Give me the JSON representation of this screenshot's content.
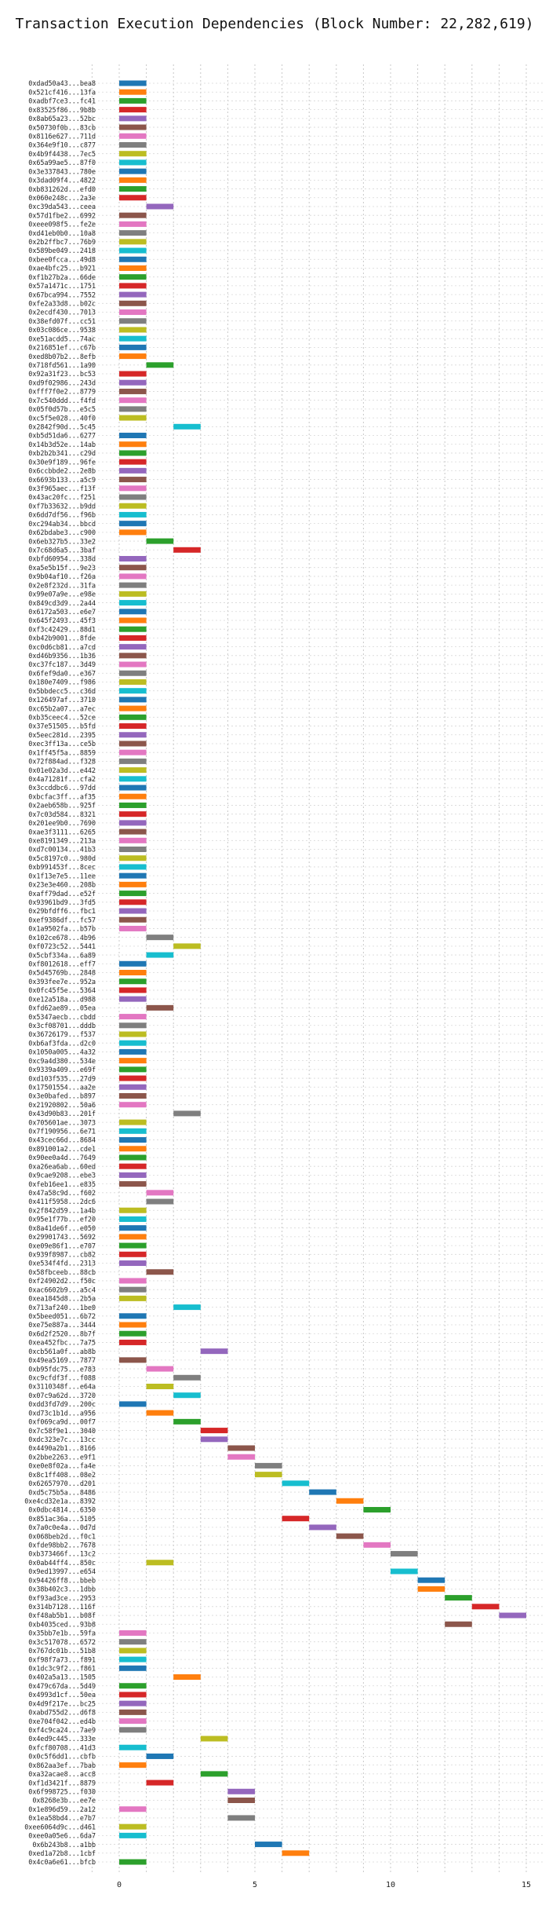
{
  "chart_data": {
    "type": "bar",
    "orientation": "horizontal",
    "title": "Transaction Execution Dependencies (Block Number: 22,282,619)",
    "xlabel": "",
    "ylabel": "",
    "xlim": [
      -1.25,
      16.25
    ],
    "xticks": [
      0,
      5,
      10,
      15
    ],
    "grid": true,
    "legend": "none",
    "palette": [
      "#1f77b4",
      "#ff7f0e",
      "#2ca02c",
      "#d62728",
      "#9467bd",
      "#8c564b",
      "#e377c2",
      "#7f7f7f",
      "#bcbd22",
      "#17becf"
    ],
    "transactions": [
      {
        "label": "0xdad50a43...bea8",
        "start": 0,
        "end": 1
      },
      {
        "label": "0x521cf416...13fa",
        "start": 0,
        "end": 1
      },
      {
        "label": "0xadbf7ce3...fc41",
        "start": 0,
        "end": 1
      },
      {
        "label": "0x83525f86...9b8b",
        "start": 0,
        "end": 1
      },
      {
        "label": "0x8ab65a23...52bc",
        "start": 0,
        "end": 1
      },
      {
        "label": "0x50730f0b...83cb",
        "start": 0,
        "end": 1
      },
      {
        "label": "0x8116e627...711d",
        "start": 0,
        "end": 1
      },
      {
        "label": "0x364e9f10...c877",
        "start": 0,
        "end": 1
      },
      {
        "label": "0x4b9f4438...7ec5",
        "start": 0,
        "end": 1
      },
      {
        "label": "0x65a99ae5...87f0",
        "start": 0,
        "end": 1
      },
      {
        "label": "0x3e337843...780e",
        "start": 0,
        "end": 1
      },
      {
        "label": "0x3dad09f4...4822",
        "start": 0,
        "end": 1
      },
      {
        "label": "0xb831262d...efd0",
        "start": 0,
        "end": 1
      },
      {
        "label": "0x060e248c...2a3e",
        "start": 0,
        "end": 1
      },
      {
        "label": "0xc39da543...ceea",
        "start": 1,
        "end": 2
      },
      {
        "label": "0x57d1fbe2...6992",
        "start": 0,
        "end": 1
      },
      {
        "label": "0xeee098f5...fe2e",
        "start": 0,
        "end": 1
      },
      {
        "label": "0xd41eb0b0...10a8",
        "start": 0,
        "end": 1
      },
      {
        "label": "0x2b2ffbc7...76b9",
        "start": 0,
        "end": 1
      },
      {
        "label": "0x589be049...2418",
        "start": 0,
        "end": 1
      },
      {
        "label": "0xbee0fcca...49d8",
        "start": 0,
        "end": 1
      },
      {
        "label": "0xae4bfc25...b921",
        "start": 0,
        "end": 1
      },
      {
        "label": "0xf1b27b2a...66de",
        "start": 0,
        "end": 1
      },
      {
        "label": "0x57a1471c...1751",
        "start": 0,
        "end": 1
      },
      {
        "label": "0x67bca994...7552",
        "start": 0,
        "end": 1
      },
      {
        "label": "0xfe2a33d8...b02c",
        "start": 0,
        "end": 1
      },
      {
        "label": "0x2ecdf430...7013",
        "start": 0,
        "end": 1
      },
      {
        "label": "0x38efd07f...cc51",
        "start": 0,
        "end": 1
      },
      {
        "label": "0x03c086ce...9538",
        "start": 0,
        "end": 1
      },
      {
        "label": "0xe51acdd5...74ac",
        "start": 0,
        "end": 1
      },
      {
        "label": "0x216851ef...c67b",
        "start": 0,
        "end": 1
      },
      {
        "label": "0xed8b07b2...8efb",
        "start": 0,
        "end": 1
      },
      {
        "label": "0x718fd561...1a90",
        "start": 1,
        "end": 2
      },
      {
        "label": "0x92a31f23...bc53",
        "start": 0,
        "end": 1
      },
      {
        "label": "0xd9f02986...243d",
        "start": 0,
        "end": 1
      },
      {
        "label": "0xfff7f0e2...8779",
        "start": 0,
        "end": 1
      },
      {
        "label": "0x7c540ddd...f4fd",
        "start": 0,
        "end": 1
      },
      {
        "label": "0x05f0d57b...e5c5",
        "start": 0,
        "end": 1
      },
      {
        "label": "0xc5f5e028...40f0",
        "start": 0,
        "end": 1
      },
      {
        "label": "0x2842f90d...5c45",
        "start": 2,
        "end": 3
      },
      {
        "label": "0xb5d51da6...6277",
        "start": 0,
        "end": 1
      },
      {
        "label": "0x14b3d52e...14ab",
        "start": 0,
        "end": 1
      },
      {
        "label": "0xb2b2b341...c29d",
        "start": 0,
        "end": 1
      },
      {
        "label": "0x30e9f189...96fe",
        "start": 0,
        "end": 1
      },
      {
        "label": "0x6ccbbde2...2e8b",
        "start": 0,
        "end": 1
      },
      {
        "label": "0x6693b133...a5c9",
        "start": 0,
        "end": 1
      },
      {
        "label": "0x3f965aec...f13f",
        "start": 0,
        "end": 1
      },
      {
        "label": "0x43ac20fc...f251",
        "start": 0,
        "end": 1
      },
      {
        "label": "0xf7b33632...b9dd",
        "start": 0,
        "end": 1
      },
      {
        "label": "0x6dd7df56...f96b",
        "start": 0,
        "end": 1
      },
      {
        "label": "0xc294ab34...bbcd",
        "start": 0,
        "end": 1
      },
      {
        "label": "0x62bdabe3...c900",
        "start": 0,
        "end": 1
      },
      {
        "label": "0x6eb327b5...33e2",
        "start": 1,
        "end": 2
      },
      {
        "label": "0x7c68d6a5...3baf",
        "start": 2,
        "end": 3
      },
      {
        "label": "0xbfd60954...338d",
        "start": 0,
        "end": 1
      },
      {
        "label": "0xa5e5b15f...9e23",
        "start": 0,
        "end": 1
      },
      {
        "label": "0x9b04af10...f26a",
        "start": 0,
        "end": 1
      },
      {
        "label": "0x2e8f232d...31fa",
        "start": 0,
        "end": 1
      },
      {
        "label": "0x99e07a9e...e98e",
        "start": 0,
        "end": 1
      },
      {
        "label": "0x849cd3d9...2a44",
        "start": 0,
        "end": 1
      },
      {
        "label": "0x6172a503...e6e7",
        "start": 0,
        "end": 1
      },
      {
        "label": "0x645f2493...45f3",
        "start": 0,
        "end": 1
      },
      {
        "label": "0xf3c42429...88d1",
        "start": 0,
        "end": 1
      },
      {
        "label": "0xb42b9001...8fde",
        "start": 0,
        "end": 1
      },
      {
        "label": "0xc0d6cb81...a7cd",
        "start": 0,
        "end": 1
      },
      {
        "label": "0xd46b9356...1b36",
        "start": 0,
        "end": 1
      },
      {
        "label": "0xc37fc187...3d49",
        "start": 0,
        "end": 1
      },
      {
        "label": "0x6fef9da0...e367",
        "start": 0,
        "end": 1
      },
      {
        "label": "0x180e7409...f986",
        "start": 0,
        "end": 1
      },
      {
        "label": "0x5bbdecc5...c36d",
        "start": 0,
        "end": 1
      },
      {
        "label": "0x126497af...3710",
        "start": 0,
        "end": 1
      },
      {
        "label": "0xc65b2a07...a7ec",
        "start": 0,
        "end": 1
      },
      {
        "label": "0xb35ceec4...52ce",
        "start": 0,
        "end": 1
      },
      {
        "label": "0x37e51505...b5fd",
        "start": 0,
        "end": 1
      },
      {
        "label": "0x5eec281d...2395",
        "start": 0,
        "end": 1
      },
      {
        "label": "0xec3ff13a...ce5b",
        "start": 0,
        "end": 1
      },
      {
        "label": "0x1ff45f5a...8859",
        "start": 0,
        "end": 1
      },
      {
        "label": "0x72f884ad...f328",
        "start": 0,
        "end": 1
      },
      {
        "label": "0x01e02a3d...e442",
        "start": 0,
        "end": 1
      },
      {
        "label": "0x4a71281f...cfa2",
        "start": 0,
        "end": 1
      },
      {
        "label": "0x3ccddbc6...97dd",
        "start": 0,
        "end": 1
      },
      {
        "label": "0xbcfac3ff...af35",
        "start": 0,
        "end": 1
      },
      {
        "label": "0x2aeb658b...925f",
        "start": 0,
        "end": 1
      },
      {
        "label": "0x7c03d584...8321",
        "start": 0,
        "end": 1
      },
      {
        "label": "0x201ee9b0...7690",
        "start": 0,
        "end": 1
      },
      {
        "label": "0xae3f3111...6265",
        "start": 0,
        "end": 1
      },
      {
        "label": "0xe8191349...213a",
        "start": 0,
        "end": 1
      },
      {
        "label": "0xd7c00134...41b3",
        "start": 0,
        "end": 1
      },
      {
        "label": "0x5c8197c0...980d",
        "start": 0,
        "end": 1
      },
      {
        "label": "0xb991453f...8cec",
        "start": 0,
        "end": 1
      },
      {
        "label": "0x1f13e7e5...11ee",
        "start": 0,
        "end": 1
      },
      {
        "label": "0x23e3e460...208b",
        "start": 0,
        "end": 1
      },
      {
        "label": "0xaff79dad...e52f",
        "start": 0,
        "end": 1
      },
      {
        "label": "0x93961bd9...3fd5",
        "start": 0,
        "end": 1
      },
      {
        "label": "0x29bfdff6...fbc1",
        "start": 0,
        "end": 1
      },
      {
        "label": "0xef9386df...fc57",
        "start": 0,
        "end": 1
      },
      {
        "label": "0x1a9502fa...b57b",
        "start": 0,
        "end": 1
      },
      {
        "label": "0x102ce678...4b96",
        "start": 1,
        "end": 2
      },
      {
        "label": "0xf0723c52...5441",
        "start": 2,
        "end": 3
      },
      {
        "label": "0x5cbf334a...6a89",
        "start": 1,
        "end": 2
      },
      {
        "label": "0xf8012618...eff7",
        "start": 0,
        "end": 1
      },
      {
        "label": "0x5d45769b...2848",
        "start": 0,
        "end": 1
      },
      {
        "label": "0x393fee7e...952a",
        "start": 0,
        "end": 1
      },
      {
        "label": "0x0fc45f5e...5364",
        "start": 0,
        "end": 1
      },
      {
        "label": "0xe12a518a...d988",
        "start": 0,
        "end": 1
      },
      {
        "label": "0xfd62ae89...05ea",
        "start": 1,
        "end": 2
      },
      {
        "label": "0x5347aecb...cbdd",
        "start": 0,
        "end": 1
      },
      {
        "label": "0x3cf08701...dddb",
        "start": 0,
        "end": 1
      },
      {
        "label": "0x36726179...f537",
        "start": 0,
        "end": 1
      },
      {
        "label": "0xb6af3fda...d2c0",
        "start": 0,
        "end": 1
      },
      {
        "label": "0x1050a005...4a32",
        "start": 0,
        "end": 1
      },
      {
        "label": "0xc9a4d380...534e",
        "start": 0,
        "end": 1
      },
      {
        "label": "0x9339a409...e69f",
        "start": 0,
        "end": 1
      },
      {
        "label": "0xd103f535...27d9",
        "start": 0,
        "end": 1
      },
      {
        "label": "0x17501554...aa2e",
        "start": 0,
        "end": 1
      },
      {
        "label": "0x3e0bafed...b897",
        "start": 0,
        "end": 1
      },
      {
        "label": "0x21920802...50a6",
        "start": 0,
        "end": 1
      },
      {
        "label": "0x43d90b83...201f",
        "start": 2,
        "end": 3
      },
      {
        "label": "0x705601ae...3073",
        "start": 0,
        "end": 1
      },
      {
        "label": "0x7f190956...6e71",
        "start": 0,
        "end": 1
      },
      {
        "label": "0x43cec66d...8684",
        "start": 0,
        "end": 1
      },
      {
        "label": "0x891001a2...cde1",
        "start": 0,
        "end": 1
      },
      {
        "label": "0x90ee0a4d...7649",
        "start": 0,
        "end": 1
      },
      {
        "label": "0xa26ea6ab...60ed",
        "start": 0,
        "end": 1
      },
      {
        "label": "0x9cae9208...ebe3",
        "start": 0,
        "end": 1
      },
      {
        "label": "0xfeb16ee1...e835",
        "start": 0,
        "end": 1
      },
      {
        "label": "0x47a58c9d...f602",
        "start": 1,
        "end": 2
      },
      {
        "label": "0x411f5958...2dc6",
        "start": 1,
        "end": 2
      },
      {
        "label": "0x2f842d59...1a4b",
        "start": 0,
        "end": 1
      },
      {
        "label": "0x95e1f77b...ef20",
        "start": 0,
        "end": 1
      },
      {
        "label": "0x8a41de6f...e050",
        "start": 0,
        "end": 1
      },
      {
        "label": "0x29901743...5692",
        "start": 0,
        "end": 1
      },
      {
        "label": "0xe09e86f1...e707",
        "start": 0,
        "end": 1
      },
      {
        "label": "0x939f8987...cb82",
        "start": 0,
        "end": 1
      },
      {
        "label": "0xe534f4fd...2313",
        "start": 0,
        "end": 1
      },
      {
        "label": "0x58fbceeb...88cb",
        "start": 1,
        "end": 2
      },
      {
        "label": "0xf24902d2...f50c",
        "start": 0,
        "end": 1
      },
      {
        "label": "0xac6602b9...a5c4",
        "start": 0,
        "end": 1
      },
      {
        "label": "0xea1845d8...2b5a",
        "start": 0,
        "end": 1
      },
      {
        "label": "0x713af240...1be0",
        "start": 2,
        "end": 3
      },
      {
        "label": "0x5beed051...6b72",
        "start": 0,
        "end": 1
      },
      {
        "label": "0xe75e887a...3444",
        "start": 0,
        "end": 1
      },
      {
        "label": "0x6d2f2520...8b7f",
        "start": 0,
        "end": 1
      },
      {
        "label": "0xea452fbc...7a75",
        "start": 0,
        "end": 1
      },
      {
        "label": "0xcb561a0f...ab8b",
        "start": 3,
        "end": 4
      },
      {
        "label": "0x49ea5169...7877",
        "start": 0,
        "end": 1
      },
      {
        "label": "0xb95fdc75...e783",
        "start": 1,
        "end": 2
      },
      {
        "label": "0xc9cfdf3f...f088",
        "start": 2,
        "end": 3
      },
      {
        "label": "0x3110348f...e64a",
        "start": 1,
        "end": 2
      },
      {
        "label": "0x07c9a62d...3720",
        "start": 2,
        "end": 3
      },
      {
        "label": "0xdd3fd7d9...200c",
        "start": 0,
        "end": 1
      },
      {
        "label": "0xd73c1b1d...a956",
        "start": 1,
        "end": 2
      },
      {
        "label": "0xf069ca9d...00f7",
        "start": 2,
        "end": 3
      },
      {
        "label": "0x7c58f9e1...3040",
        "start": 3,
        "end": 4
      },
      {
        "label": "0xdc323e7c...13cc",
        "start": 3,
        "end": 4
      },
      {
        "label": "0x4490a2b1...8166",
        "start": 4,
        "end": 5
      },
      {
        "label": "0x2bbe2263...e9f1",
        "start": 4,
        "end": 5
      },
      {
        "label": "0xe0e8f02a...fa4e",
        "start": 5,
        "end": 6
      },
      {
        "label": "0x8c1ff408...08e2",
        "start": 5,
        "end": 6
      },
      {
        "label": "0x62657970...d201",
        "start": 6,
        "end": 7
      },
      {
        "label": "0xd5c75b5a...8486",
        "start": 7,
        "end": 8
      },
      {
        "label": "0xe4cd32e1a...8392",
        "start": 8,
        "end": 9
      },
      {
        "label": "0x0dbc4814...6350",
        "start": 9,
        "end": 10
      },
      {
        "label": "0x851ac36a...5105",
        "start": 6,
        "end": 7
      },
      {
        "label": "0x7a0c0e4a...0d7d",
        "start": 7,
        "end": 8
      },
      {
        "label": "0x068beb2d...f0c1",
        "start": 8,
        "end": 9
      },
      {
        "label": "0xfde98bb2...7678",
        "start": 9,
        "end": 10
      },
      {
        "label": "0xb373466f...13c2",
        "start": 10,
        "end": 11
      },
      {
        "label": "0x0ab44ff4...850c",
        "start": 1,
        "end": 2
      },
      {
        "label": "0x9ed13997...e654",
        "start": 10,
        "end": 11
      },
      {
        "label": "0x94426ff8...bbeb",
        "start": 11,
        "end": 12
      },
      {
        "label": "0x38b402c3...1dbb",
        "start": 11,
        "end": 12
      },
      {
        "label": "0xf93ad3ce...2953",
        "start": 12,
        "end": 13
      },
      {
        "label": "0x314b7128...116f",
        "start": 13,
        "end": 14
      },
      {
        "label": "0xf48ab5b1...b08f",
        "start": 14,
        "end": 15
      },
      {
        "label": "0xb4035ced...93b8",
        "start": 12,
        "end": 13
      },
      {
        "label": "0x35bb7e1b...59fa",
        "start": 0,
        "end": 1
      },
      {
        "label": "0x3c517078...6572",
        "start": 0,
        "end": 1
      },
      {
        "label": "0x767dc01b...51b8",
        "start": 0,
        "end": 1
      },
      {
        "label": "0xf98f7a73...f891",
        "start": 0,
        "end": 1
      },
      {
        "label": "0x1dc3c9f2...f861",
        "start": 0,
        "end": 1
      },
      {
        "label": "0x402a5a13...1505",
        "start": 2,
        "end": 3
      },
      {
        "label": "0x479c67da...5d49",
        "start": 0,
        "end": 1
      },
      {
        "label": "0x4993d1cf...50ea",
        "start": 0,
        "end": 1
      },
      {
        "label": "0x4d9f217e...bc25",
        "start": 0,
        "end": 1
      },
      {
        "label": "0xabd755d2...d6f8",
        "start": 0,
        "end": 1
      },
      {
        "label": "0xe704f042...ed4b",
        "start": 0,
        "end": 1
      },
      {
        "label": "0xf4c9ca24...7ae9",
        "start": 0,
        "end": 1
      },
      {
        "label": "0x4ed9c445...333e",
        "start": 3,
        "end": 4
      },
      {
        "label": "0xfcf80708...41d3",
        "start": 0,
        "end": 1
      },
      {
        "label": "0x0c5f6dd1...cbfb",
        "start": 1,
        "end": 2
      },
      {
        "label": "0x862aa3ef...7bab",
        "start": 0,
        "end": 1
      },
      {
        "label": "0xa32acae8...acc8",
        "start": 3,
        "end": 4
      },
      {
        "label": "0xf1d3421f...8879",
        "start": 1,
        "end": 2
      },
      {
        "label": "0x6f998725...f030",
        "start": 4,
        "end": 5
      },
      {
        "label": "0x8268e3b...ee7e",
        "start": 4,
        "end": 5
      },
      {
        "label": "0x1e896d59...2a12",
        "start": 0,
        "end": 1
      },
      {
        "label": "0x1ea58bd4...e7b7",
        "start": 4,
        "end": 5
      },
      {
        "label": "0xee6064d9c...d461",
        "start": 0,
        "end": 1
      },
      {
        "label": "0xee0a05e6...6da7",
        "start": 0,
        "end": 1
      },
      {
        "label": "0x6b243b8...a1bb",
        "start": 5,
        "end": 6
      },
      {
        "label": "0xed1a72b8...1cbf",
        "start": 6,
        "end": 7
      },
      {
        "label": "0x4c0a6e61...bfcb",
        "start": 0,
        "end": 1
      }
    ]
  }
}
